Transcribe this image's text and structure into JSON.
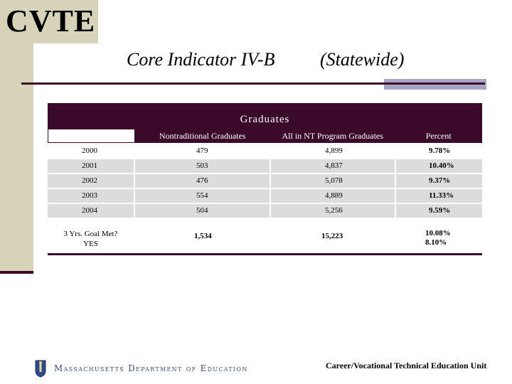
{
  "header": {
    "logo": "CVTE",
    "title_left": "Core Indicator IV-B",
    "title_right": "(Statewide)"
  },
  "table": {
    "heading": "Graduates",
    "columns": [
      "",
      "Nontraditional Graduates",
      "All in NT Program Graduates",
      "Percent"
    ],
    "rows": [
      {
        "year": "2000",
        "nontraditional": "479",
        "all": "4,899",
        "percent": "9.78%"
      },
      {
        "year": "2001",
        "nontraditional": "503",
        "all": "4,837",
        "percent": "10.40%"
      },
      {
        "year": "2002",
        "nontraditional": "476",
        "all": "5,078",
        "percent": "9.37%"
      },
      {
        "year": "2003",
        "nontraditional": "554",
        "all": "4,889",
        "percent": "11.33%"
      },
      {
        "year": "2004",
        "nontraditional": "504",
        "all": "5,256",
        "percent": "9.59%"
      }
    ],
    "goal": {
      "label": "3 Yrs. Goal Met?",
      "answer": "YES",
      "nontraditional_total": "1,534",
      "all_total": "15,223",
      "percent": "10.08%",
      "goal_percent": "8.10%"
    }
  },
  "footer": {
    "department": "Massachusetts Department of Education",
    "unit": "Career/Vocational Technical Education Unit"
  },
  "colors": {
    "accent": "#3b0a2a",
    "sidebar": "#d6d3b8",
    "accent_bar": "#a9a3c4",
    "row_shade": "#dcdcdc"
  },
  "icons": {
    "footer_seal": "massachusetts-seal-icon"
  }
}
